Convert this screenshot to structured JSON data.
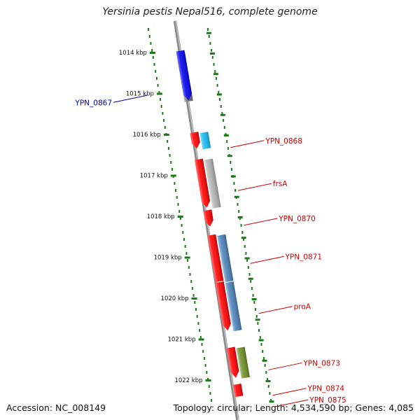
{
  "title": "Yersinia pestis Nepal516, complete genome",
  "accession": "Accession: NC_008149",
  "summary": "Topology: circular; Length: 4,534,590 bp; Genes: 4,085",
  "ruler": {
    "start_kbp": 1013.4,
    "end_kbp": 1022.4,
    "tick_labels": [
      "1014 kbp",
      "1015 kbp",
      "1016 kbp",
      "1017 kbp",
      "1018 kbp",
      "1019 kbp",
      "1020 kbp",
      "1021 kbp",
      "1022 kbp"
    ]
  },
  "forward_features": [
    {
      "color": "#6b6b6b",
      "start_kbp": 1014.0,
      "end_kbp": 1015.2,
      "arrow": false
    },
    {
      "color": "#0000ee",
      "start_kbp": 1013.95,
      "end_kbp": 1015.18,
      "arrow": true
    },
    {
      "color": "#ff0000",
      "start_kbp": 1015.95,
      "end_kbp": 1016.35,
      "arrow": true
    },
    {
      "color": "#11bbee",
      "start_kbp": 1015.95,
      "end_kbp": 1016.35,
      "arrow": false
    },
    {
      "color": "#ff0000",
      "start_kbp": 1016.6,
      "end_kbp": 1017.8,
      "arrow": true
    },
    {
      "color": "#b0b0b0",
      "start_kbp": 1016.6,
      "end_kbp": 1017.8,
      "arrow": false
    },
    {
      "color": "#ff0000",
      "start_kbp": 1017.85,
      "end_kbp": 1018.25,
      "arrow": true
    },
    {
      "color": "#ff0000",
      "start_kbp": 1018.45,
      "end_kbp": 1019.6,
      "arrow": false
    },
    {
      "color": "#4a80b8",
      "start_kbp": 1018.45,
      "end_kbp": 1019.6,
      "arrow": false
    },
    {
      "color": "#ff0000",
      "start_kbp": 1019.6,
      "end_kbp": 1020.8,
      "arrow": true
    },
    {
      "color": "#4a80b8",
      "start_kbp": 1019.6,
      "end_kbp": 1020.8,
      "arrow": false
    },
    {
      "color": "#ff0000",
      "start_kbp": 1021.2,
      "end_kbp": 1021.95,
      "arrow": true
    },
    {
      "color": "#6b8e23",
      "start_kbp": 1021.2,
      "end_kbp": 1021.95,
      "arrow": false
    },
    {
      "color": "#ff0000",
      "start_kbp": 1022.1,
      "end_kbp": 1022.4,
      "arrow": false
    }
  ],
  "gene_labels": [
    {
      "text": "YPN_0867",
      "color": "#0000aa",
      "kbp": 1014.62
    },
    {
      "text": "YPN_0868",
      "color": "#cc0000",
      "kbp": 1016.15
    },
    {
      "text": "frsA",
      "color": "#cc0000",
      "kbp": 1017.2
    },
    {
      "text": "YPN_0870",
      "color": "#cc0000",
      "kbp": 1018.05
    },
    {
      "text": "YPN_0871",
      "color": "#cc0000",
      "kbp": 1018.98
    },
    {
      "text": "proA",
      "color": "#cc0000",
      "kbp": 1020.2
    },
    {
      "text": "YPN_0873",
      "color": "#cc0000",
      "kbp": 1021.58
    },
    {
      "text": "YPN_0874",
      "color": "#cc0000",
      "kbp": 1022.2
    },
    {
      "text": "YPN_0875",
      "color": "#cc0000",
      "kbp": 1022.48
    }
  ],
  "colors": {
    "backbone": "#8a8a8a",
    "ticks": "#1a7a1a",
    "tick_label": "#111111"
  }
}
